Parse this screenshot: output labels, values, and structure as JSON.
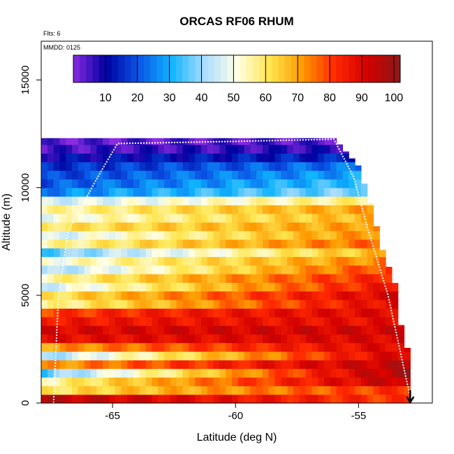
{
  "chart_data": {
    "type": "heatmap",
    "title": "ORCAS RF06 RHUM",
    "flights_label": "Flts: 6",
    "date_label": "MMDD: 0125",
    "xlabel": "Latitude (deg N)",
    "ylabel": "Altitude (m)",
    "xlim": [
      -67.9,
      -52.0
    ],
    "ylim": [
      0,
      16800
    ],
    "x_ticks": [
      -65,
      -60,
      -55
    ],
    "x_tick_labels": [
      "-65",
      "-60",
      "-55"
    ],
    "y_ticks": [
      0,
      5000,
      10000,
      15000
    ],
    "y_tick_labels": [
      "0",
      "5000",
      "10000",
      "15000"
    ],
    "colorbar": {
      "range": [
        0,
        102
      ],
      "ticks": [
        10,
        20,
        30,
        40,
        50,
        60,
        70,
        80,
        90,
        100
      ],
      "tick_labels": [
        "10",
        "20",
        "30",
        "40",
        "50",
        "60",
        "70",
        "80",
        "90",
        "100"
      ],
      "colors": [
        "#8a2be2",
        "#0000a0",
        "#0a55e6",
        "#0fb4ff",
        "#a8dcff",
        "#ffffe6",
        "#ffe650",
        "#ff9a00",
        "#ff2800",
        "#d20000",
        "#8b1a1a"
      ]
    },
    "grid": {
      "lat_start": -67.9,
      "lat_end": -52.8,
      "lat_step": 0.25,
      "alt_step": 400,
      "alt_levels": [
        0,
        400,
        800,
        1200,
        1600,
        2000,
        2400,
        2800,
        3200,
        3600,
        4000,
        4400,
        4800,
        5200,
        5600,
        6000,
        6400,
        6800,
        7200,
        7600,
        8000,
        8400,
        8800,
        9200,
        9600,
        10000,
        10400,
        10800,
        11200,
        11600,
        12000
      ],
      "rh_south_profile": [
        95,
        60,
        55,
        35,
        70,
        40,
        70,
        88,
        90,
        85,
        80,
        55,
        60,
        45,
        55,
        40,
        50,
        35,
        55,
        45,
        60,
        50,
        55,
        45,
        25,
        20,
        18,
        15,
        10,
        5,
        3
      ],
      "rh_north_profile": [
        80,
        82,
        95,
        98,
        95,
        92,
        90,
        90,
        92,
        88,
        90,
        90,
        92,
        88,
        85,
        82,
        75,
        70,
        78,
        75,
        72,
        70,
        72,
        60,
        40,
        35,
        30,
        25,
        15,
        8,
        5
      ],
      "ceiling": [
        [
          -67.9,
          12300
        ],
        [
          -56.0,
          12300
        ],
        [
          -55.0,
          11000
        ],
        [
          -54.5,
          9200
        ],
        [
          -54.0,
          7000
        ],
        [
          -53.5,
          5500
        ],
        [
          -53.2,
          3000
        ],
        [
          -52.8,
          2000
        ]
      ]
    },
    "flight_track": [
      [
        -67.4,
        0
      ],
      [
        -67.2,
        5000
      ],
      [
        -66.8,
        8000
      ],
      [
        -65.6,
        10500
      ],
      [
        -64.8,
        12050
      ],
      [
        -60.0,
        12150
      ],
      [
        -56.0,
        12250
      ],
      [
        -55.2,
        10500
      ],
      [
        -54.6,
        8000
      ],
      [
        -53.8,
        5000
      ],
      [
        -53.1,
        1300
      ],
      [
        -52.9,
        300
      ]
    ],
    "arrow": {
      "lat": -52.9,
      "from_alt": 600,
      "to_alt": 0
    }
  }
}
